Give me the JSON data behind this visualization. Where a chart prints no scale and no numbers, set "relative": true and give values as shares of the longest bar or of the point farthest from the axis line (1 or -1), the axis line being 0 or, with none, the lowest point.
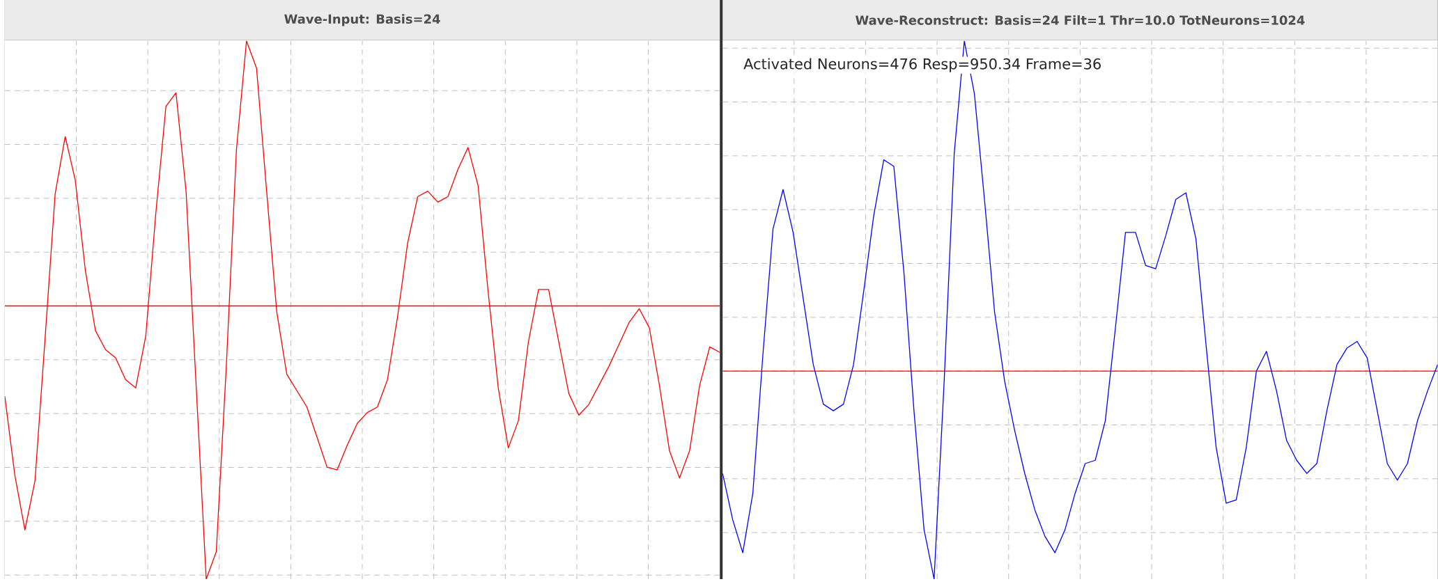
{
  "chart_data": [
    {
      "type": "line",
      "title": "Wave-Input: Basis=24",
      "ref_lines": [
        {
          "axis": "y",
          "value": 0,
          "color": "#ff0000"
        }
      ],
      "relative": true,
      "grid": true,
      "tick_labels": false,
      "categories": [
        null,
        null,
        null,
        null,
        null,
        null,
        null,
        null,
        null,
        null,
        null,
        null,
        null,
        null,
        null,
        null,
        null,
        null,
        null,
        null,
        null,
        null,
        null,
        null,
        null,
        null,
        null,
        null,
        null,
        null,
        null,
        null,
        null,
        null,
        null,
        null,
        null,
        null,
        null,
        null,
        null,
        null,
        null,
        null,
        null,
        null,
        null,
        null,
        null,
        null,
        null,
        null,
        null,
        null,
        null,
        null,
        null,
        null,
        null,
        null,
        null,
        null,
        null,
        null,
        null,
        null,
        null,
        null,
        null,
        null,
        null,
        null
      ],
      "series": [
        {
          "color": "#ff0000",
          "values": [
            -0.33,
            -0.62,
            -0.82,
            -0.64,
            -0.12,
            0.41,
            0.62,
            0.46,
            0.13,
            -0.09,
            -0.16,
            -0.19,
            -0.27,
            -0.3,
            -0.11,
            0.34,
            0.73,
            0.78,
            0.42,
            -0.29,
            -1,
            -0.9,
            -0.22,
            0.57,
            0.97,
            0.87,
            0.42,
            -0.02,
            -0.25,
            -0.31,
            -0.37,
            -0.48,
            -0.59,
            -0.6,
            -0.51,
            -0.43,
            -0.39,
            -0.37,
            -0.27,
            -0.04,
            0.23,
            0.4,
            0.42,
            0.38,
            0.4,
            0.5,
            0.58,
            0.44,
            0.05,
            -0.3,
            -0.52,
            -0.42,
            -0.13,
            0.06,
            0.06,
            -0.13,
            -0.32,
            -0.4,
            -0.36,
            -0.29,
            -0.22,
            -0.14,
            -0.06,
            -0.01,
            -0.08,
            -0.29,
            -0.53,
            -0.63,
            -0.53,
            -0.29,
            -0.15,
            -0.17
          ]
        }
      ]
    },
    {
      "type": "line",
      "title": "Wave-Reconstruct: Basis=24  Filt=1  Thr=10.0  TotNeurons=1024",
      "annotations": [
        "Activated Neurons=476   Resp=950.34  Frame=36"
      ],
      "ref_lines": [
        {
          "axis": "y",
          "value": 0,
          "color": "#ff0000"
        }
      ],
      "relative": true,
      "grid": true,
      "tick_labels": false,
      "categories": [
        null,
        null,
        null,
        null,
        null,
        null,
        null,
        null,
        null,
        null,
        null,
        null,
        null,
        null,
        null,
        null,
        null,
        null,
        null,
        null,
        null,
        null,
        null,
        null,
        null,
        null,
        null,
        null,
        null,
        null,
        null,
        null,
        null,
        null,
        null,
        null,
        null,
        null,
        null,
        null,
        null,
        null,
        null,
        null,
        null,
        null,
        null,
        null,
        null,
        null,
        null,
        null,
        null,
        null,
        null,
        null,
        null,
        null,
        null,
        null,
        null,
        null,
        null,
        null,
        null,
        null,
        null,
        null,
        null,
        null,
        null,
        null
      ],
      "series": [
        {
          "color": "#0000ff",
          "values": [
            -0.31,
            -0.45,
            -0.55,
            -0.37,
            0.05,
            0.43,
            0.55,
            0.42,
            0.22,
            0.02,
            -0.1,
            -0.12,
            -0.1,
            0.02,
            0.24,
            0.47,
            0.64,
            0.62,
            0.3,
            -0.12,
            -0.48,
            -0.63,
            -0.03,
            0.66,
            1.0,
            0.84,
            0.52,
            0.18,
            -0.03,
            -0.18,
            -0.31,
            -0.42,
            -0.5,
            -0.55,
            -0.48,
            -0.37,
            -0.28,
            -0.27,
            -0.15,
            0.13,
            0.42,
            0.42,
            0.32,
            0.31,
            0.41,
            0.52,
            0.54,
            0.4,
            0.08,
            -0.23,
            -0.4,
            -0.39,
            -0.23,
            0.0,
            0.06,
            -0.06,
            -0.21,
            -0.27,
            -0.31,
            -0.28,
            -0.12,
            0.02,
            0.07,
            0.09,
            0.04,
            -0.12,
            -0.28,
            -0.33,
            -0.28,
            -0.15,
            -0.06,
            0.02
          ]
        }
      ]
    }
  ]
}
